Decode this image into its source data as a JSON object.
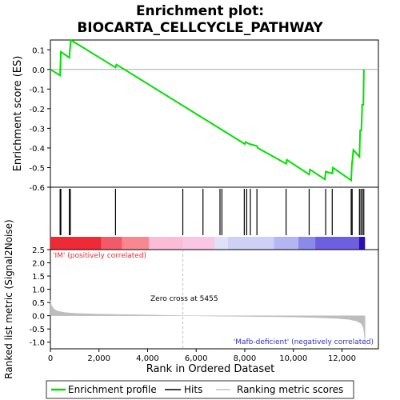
{
  "chart_data": [
    {
      "panel": "enrichment",
      "type": "line",
      "title": "Enrichment plot:\nBIOCARTA_CELLCYCLE_PATHWAY",
      "title_lines": [
        "Enrichment plot:",
        "BIOCARTA_CELLCYCLE_PATHWAY"
      ],
      "ylabel": "Enrichment score (ES)",
      "ylim": [
        -0.6,
        0.15
      ],
      "xlim": [
        0,
        13500
      ],
      "yticks": [
        0.1,
        0.0,
        -0.1,
        -0.2,
        -0.3,
        -0.4,
        -0.5,
        -0.6
      ],
      "ytick_labels": [
        "0.1",
        "0.0",
        "-0.1",
        "-0.2",
        "-0.3",
        "-0.4",
        "-0.5",
        "-0.6"
      ],
      "line_color": "#00e000",
      "series": [
        {
          "name": "Enrichment profile",
          "x": [
            0,
            400,
            410,
            430,
            780,
            800,
            820,
            840,
            2680,
            2700,
            2720,
            8000,
            8030,
            8200,
            8500,
            8530,
            9700,
            9730,
            10650,
            10680,
            11300,
            11330,
            11600,
            11630,
            12380,
            12410,
            12440,
            12470,
            12720,
            12750,
            12800,
            12830,
            12880,
            12900
          ],
          "y": [
            0.0,
            -0.03,
            0.02,
            0.09,
            0.06,
            0.1,
            0.12,
            0.15,
            0.01,
            0.02,
            0.025,
            -0.38,
            -0.37,
            -0.38,
            -0.39,
            -0.4,
            -0.48,
            -0.46,
            -0.535,
            -0.51,
            -0.56,
            -0.52,
            -0.53,
            -0.5,
            -0.565,
            -0.48,
            -0.45,
            -0.41,
            -0.445,
            -0.31,
            -0.31,
            -0.18,
            -0.18,
            0.0
          ]
        }
      ],
      "hits": [
        400,
        430,
        780,
        820,
        2680,
        5450,
        6280,
        6980,
        7060,
        7980,
        8080,
        8230,
        8500,
        9700,
        10650,
        11330,
        11600,
        12380,
        12420,
        12720,
        12780,
        12840,
        12900
      ]
    },
    {
      "panel": "rank_colorbar",
      "type": "heatmap",
      "segments": [
        {
          "from": 0,
          "to": 2100,
          "color": "#ee2a36"
        },
        {
          "from": 2100,
          "to": 2950,
          "color": "#f25a68"
        },
        {
          "from": 2950,
          "to": 4050,
          "color": "#f78890"
        },
        {
          "from": 4050,
          "to": 5450,
          "color": "#fbbcd8"
        },
        {
          "from": 5450,
          "to": 6750,
          "color": "#f9c6e4"
        },
        {
          "from": 6750,
          "to": 7300,
          "color": "#e0e0f8"
        },
        {
          "from": 7300,
          "to": 9200,
          "color": "#cfd0f6"
        },
        {
          "from": 9200,
          "to": 10200,
          "color": "#b4b6f2"
        },
        {
          "from": 10200,
          "to": 10900,
          "color": "#8a8ae8"
        },
        {
          "from": 10900,
          "to": 12700,
          "color": "#6e5ee0"
        },
        {
          "from": 12700,
          "to": 12950,
          "color": "#2a10b0"
        }
      ]
    },
    {
      "panel": "ranking_metric",
      "type": "area",
      "xlabel": "Rank in Ordered Dataset",
      "ylabel": "Ranked list metric (Signal2Noise)",
      "ylim": [
        -1.25,
        2.5
      ],
      "xlim": [
        0,
        13500
      ],
      "yticks": [
        2.5,
        2.0,
        1.5,
        1.0,
        0.5,
        0.0,
        -0.5,
        -1.0
      ],
      "ytick_labels": [
        "2.5",
        "2.0",
        "1.5",
        "1.0",
        "0.5",
        "0.0",
        "-0.5",
        "-1.0"
      ],
      "xticks": [
        0,
        2000,
        4000,
        6000,
        8000,
        10000,
        12000
      ],
      "xtick_labels": [
        "0",
        "2,000",
        "4,000",
        "6,000",
        "8,000",
        "10,000",
        "12,000"
      ],
      "fill_color": "#bdbdbd",
      "x": [
        0,
        50,
        150,
        300,
        600,
        1000,
        2000,
        3000,
        4000,
        5000,
        5455,
        6000,
        7000,
        8000,
        9000,
        10000,
        11000,
        11800,
        12300,
        12600,
        12800,
        12880,
        12920,
        12950
      ],
      "y": [
        0.58,
        0.38,
        0.25,
        0.17,
        0.12,
        0.09,
        0.06,
        0.045,
        0.03,
        0.012,
        0.0,
        -0.005,
        -0.015,
        -0.025,
        -0.035,
        -0.05,
        -0.07,
        -0.1,
        -0.14,
        -0.2,
        -0.3,
        -0.45,
        -0.7,
        -1.15
      ],
      "annotations": [
        {
          "text": "'IM' (positively correlated)",
          "color": "#ee2a36"
        },
        {
          "text": "Zero cross at 5455",
          "color": "#000000"
        },
        {
          "text": "'Mafb-deficient' (negatively correlated)",
          "color": "#3030c8"
        }
      ],
      "zero_cross": 5455
    }
  ],
  "legend": {
    "items": [
      {
        "label": "Enrichment profile",
        "color": "#00e000"
      },
      {
        "label": "Hits",
        "color": "#000000"
      },
      {
        "label": "Ranking metric scores",
        "color": "#bdbdbd"
      }
    ]
  }
}
